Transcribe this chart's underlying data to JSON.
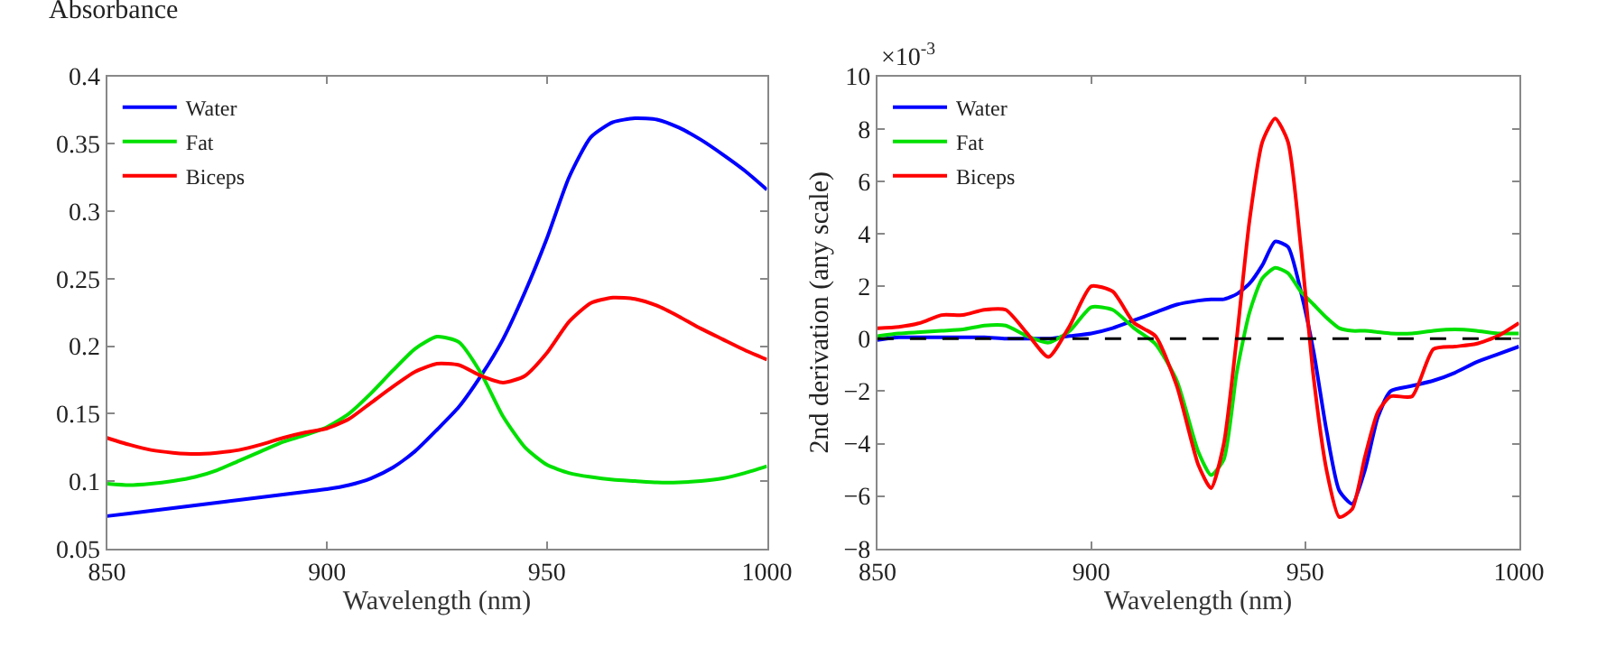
{
  "chart_data": [
    {
      "type": "line",
      "ylabel": "Absorbance",
      "xlabel": "Wavelength (nm)",
      "xlim": [
        850,
        1000
      ],
      "xticks": [
        850,
        900,
        950,
        1000
      ],
      "ylim": [
        0.05,
        0.4
      ],
      "yticks": [
        0.05,
        0.1,
        0.15,
        0.2,
        0.25,
        0.3,
        0.35,
        0.4
      ],
      "legend": "top left",
      "marker": "none",
      "line_style": "solid",
      "x": [
        850,
        855,
        860,
        865,
        870,
        875,
        880,
        885,
        890,
        895,
        900,
        905,
        910,
        915,
        920,
        925,
        930,
        935,
        940,
        945,
        950,
        955,
        960,
        965,
        970,
        975,
        980,
        985,
        990,
        995,
        1000
      ],
      "series": [
        {
          "name": "Water",
          "color": "#0000ff",
          "values": [
            0.074,
            0.076,
            0.078,
            0.08,
            0.082,
            0.084,
            0.086,
            0.088,
            0.09,
            0.092,
            0.094,
            0.097,
            0.102,
            0.11,
            0.122,
            0.138,
            0.155,
            0.178,
            0.205,
            0.24,
            0.28,
            0.325,
            0.355,
            0.366,
            0.369,
            0.368,
            0.362,
            0.353,
            0.342,
            0.33,
            0.316
          ]
        },
        {
          "name": "Fat",
          "color": "#00e000",
          "values": [
            0.098,
            0.097,
            0.098,
            0.1,
            0.103,
            0.108,
            0.115,
            0.122,
            0.129,
            0.134,
            0.14,
            0.15,
            0.165,
            0.182,
            0.198,
            0.207,
            0.203,
            0.18,
            0.148,
            0.125,
            0.112,
            0.106,
            0.103,
            0.101,
            0.1,
            0.099,
            0.099,
            0.1,
            0.102,
            0.106,
            0.111
          ]
        },
        {
          "name": "Biceps",
          "color": "#ff0000",
          "values": [
            0.132,
            0.127,
            0.123,
            0.121,
            0.12,
            0.121,
            0.123,
            0.127,
            0.132,
            0.136,
            0.139,
            0.146,
            0.158,
            0.17,
            0.181,
            0.187,
            0.186,
            0.178,
            0.173,
            0.178,
            0.195,
            0.218,
            0.232,
            0.236,
            0.235,
            0.23,
            0.222,
            0.213,
            0.205,
            0.197,
            0.19
          ]
        }
      ]
    },
    {
      "type": "line",
      "ylabel": "2nd derivation (any scale)",
      "xlabel": "Wavelength (nm)",
      "annotations": [
        "×10$^{-3}$"
      ],
      "xlim": [
        850,
        1000
      ],
      "xticks": [
        850,
        900,
        950,
        1000
      ],
      "ylim": [
        -8,
        10
      ],
      "yticks": [
        {
          "value": -8,
          "label": "−8"
        },
        {
          "value": -6,
          "label": "−6"
        },
        {
          "value": -4,
          "label": "−4"
        },
        {
          "value": -2,
          "label": "−2"
        },
        0,
        2,
        4,
        6,
        8,
        10
      ],
      "legend": "top left",
      "marker": "none",
      "line_style": "solid",
      "ref_lines": [
        {
          "axis": "y",
          "value": 0,
          "color": "#000000",
          "line_style": "dashed"
        }
      ],
      "x": [
        850,
        855,
        860,
        865,
        870,
        875,
        880,
        885,
        890,
        895,
        900,
        905,
        910,
        915,
        920,
        925,
        928,
        931,
        934,
        937,
        940,
        943,
        946,
        949,
        952,
        955,
        958,
        961,
        964,
        967,
        970,
        975,
        980,
        985,
        990,
        995,
        1000
      ],
      "series": [
        {
          "name": "Water",
          "color": "#0000ff",
          "values": [
            -0.05,
            0.05,
            0.05,
            0.05,
            0.05,
            0.05,
            0.0,
            0.0,
            0.0,
            0.1,
            0.2,
            0.4,
            0.7,
            1.0,
            1.3,
            1.45,
            1.5,
            1.5,
            1.7,
            2.1,
            2.8,
            3.7,
            3.5,
            1.8,
            -0.5,
            -3.5,
            -5.8,
            -6.3,
            -5.0,
            -3.0,
            -2.0,
            -1.8,
            -1.6,
            -1.3,
            -0.9,
            -0.6,
            -0.3
          ]
        },
        {
          "name": "Fat",
          "color": "#00e000",
          "values": [
            0.1,
            0.2,
            0.25,
            0.3,
            0.35,
            0.5,
            0.5,
            0.1,
            -0.15,
            0.3,
            1.2,
            1.1,
            0.4,
            -0.2,
            -1.6,
            -4.3,
            -5.2,
            -4.6,
            -1.3,
            1.0,
            2.3,
            2.7,
            2.5,
            1.8,
            1.3,
            0.8,
            0.4,
            0.3,
            0.3,
            0.25,
            0.2,
            0.2,
            0.3,
            0.35,
            0.3,
            0.2,
            0.2
          ]
        },
        {
          "name": "Biceps",
          "color": "#ff0000",
          "values": [
            0.4,
            0.45,
            0.6,
            0.9,
            0.9,
            1.1,
            1.1,
            0.2,
            -0.7,
            0.5,
            2.0,
            1.8,
            0.6,
            0.1,
            -1.8,
            -4.8,
            -5.7,
            -4.0,
            0.0,
            4.5,
            7.5,
            8.4,
            7.5,
            3.5,
            -1.5,
            -5.0,
            -6.8,
            -6.5,
            -4.5,
            -2.8,
            -2.2,
            -2.2,
            -0.4,
            -0.3,
            -0.2,
            0.1,
            0.6
          ]
        }
      ]
    }
  ]
}
